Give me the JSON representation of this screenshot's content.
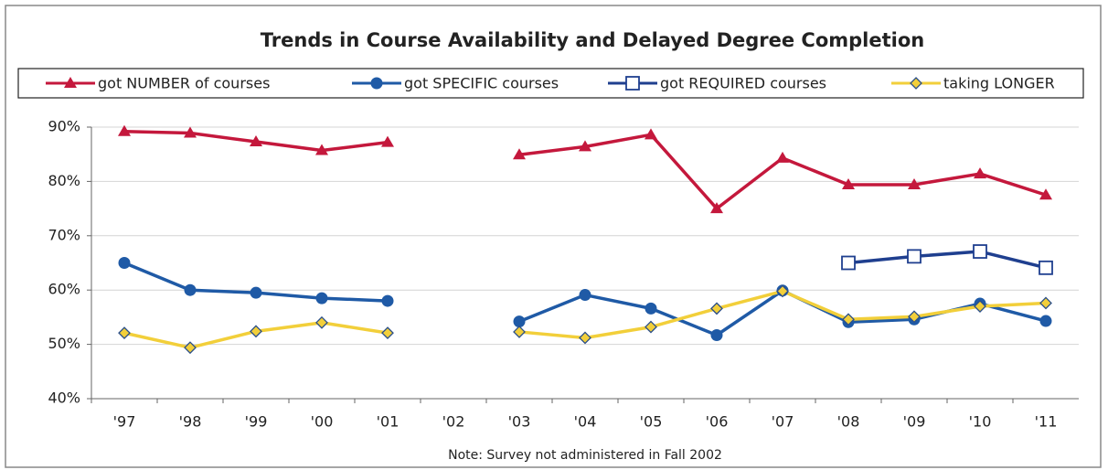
{
  "chart_data": {
    "type": "line",
    "title": "Trends in Course Availability and Delayed Degree Completion",
    "note": "Note: Survey not administered in Fall 2002",
    "categories": [
      "'97",
      "'98",
      "'99",
      "'00",
      "'01",
      "'02",
      "'03",
      "'04",
      "'05",
      "'06",
      "'07",
      "'08",
      "'09",
      "'10",
      "'11"
    ],
    "series": [
      {
        "name": "got NUMBER of courses",
        "color": "#c4183c",
        "marker": "triangle",
        "values": [
          89.2,
          88.9,
          87.3,
          85.7,
          87.2,
          null,
          84.9,
          86.4,
          88.6,
          75.0,
          84.3,
          79.4,
          79.4,
          81.4,
          77.5
        ]
      },
      {
        "name": "got SPECIFIC courses",
        "color": "#1f5aa6",
        "marker": "circle",
        "values": [
          65.0,
          60.0,
          59.5,
          58.5,
          58.0,
          null,
          54.2,
          59.1,
          56.6,
          51.7,
          59.9,
          54.1,
          54.6,
          57.5,
          54.3
        ]
      },
      {
        "name": "got REQUIRED courses",
        "color": "#1f3f8f",
        "marker": "square",
        "values": [
          null,
          null,
          null,
          null,
          null,
          null,
          null,
          null,
          null,
          null,
          null,
          65.0,
          66.2,
          67.1,
          64.1
        ]
      },
      {
        "name": "taking LONGER",
        "color": "#f2cf3a",
        "marker": "diamond",
        "values": [
          52.1,
          49.4,
          52.4,
          54.0,
          52.1,
          null,
          52.3,
          51.2,
          53.2,
          56.6,
          59.8,
          54.6,
          55.1,
          57.0,
          57.6
        ]
      }
    ],
    "ylim": [
      40,
      90
    ],
    "yticks": [
      {
        "value": 40,
        "label": "40%"
      },
      {
        "value": 50,
        "label": "50%"
      },
      {
        "value": 60,
        "label": "60%"
      },
      {
        "value": 70,
        "label": "70%"
      },
      {
        "value": 80,
        "label": "80%"
      },
      {
        "value": 90,
        "label": "90%"
      }
    ],
    "grid": true
  }
}
